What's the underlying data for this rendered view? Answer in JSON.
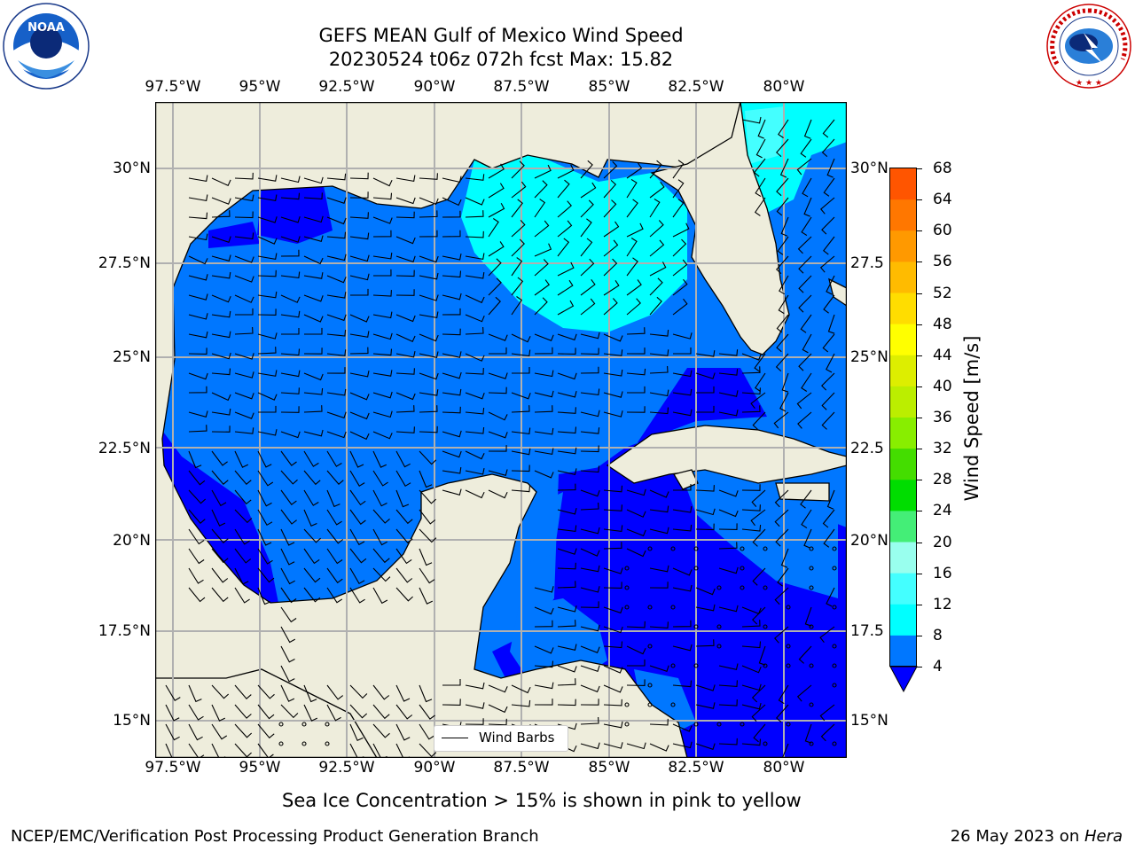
{
  "header": {
    "title_line1": "GEFS MEAN Gulf of Mexico Wind Speed",
    "title_line2": "20230524 t06z 072h fcst   Max: 15.82"
  },
  "logos": {
    "noaa_text": "NOAA",
    "nws_text": "NATIONAL WEATHER SERVICE"
  },
  "axes": {
    "lon_ticks": [
      "97.5°W",
      "95°W",
      "92.5°W",
      "90°W",
      "87.5°W",
      "85°W",
      "82.5°W",
      "80°W"
    ],
    "lat_ticks_left": [
      "30°N",
      "27.5°N",
      "25°N",
      "22.5°N",
      "20°N",
      "17.5°N",
      "15°N"
    ],
    "lat_ticks_right": [
      "30°N",
      "27.5",
      "25°N",
      "22.5",
      "20°N",
      "17.5",
      "15°N"
    ]
  },
  "legend": {
    "label": "Wind Barbs"
  },
  "colorbar": {
    "label": "Wind Speed [m/s]",
    "ticks": [
      "68",
      "64",
      "60",
      "56",
      "52",
      "48",
      "44",
      "40",
      "36",
      "32",
      "28",
      "24",
      "20",
      "16",
      "12",
      "8",
      "4"
    ],
    "colors": [
      "#ff0000",
      "#ff3300",
      "#ff5500",
      "#ff7700",
      "#ff9900",
      "#ffbb00",
      "#ffdd00",
      "#ffff00",
      "#ddee00",
      "#bbee00",
      "#88ee00",
      "#44dd00",
      "#00dd00",
      "#44ee77",
      "#99ffee",
      "#44ffff",
      "#00ffff",
      "#0077ff"
    ],
    "extend_color": "#0000ff"
  },
  "note": "Sea Ice Concentration > 15% is shown in pink to yellow",
  "footer": {
    "left": "NCEP/EMC/Verification Post Processing Product Generation Branch",
    "right_date": "26 May 2023 on ",
    "right_machine": "Hera"
  }
}
